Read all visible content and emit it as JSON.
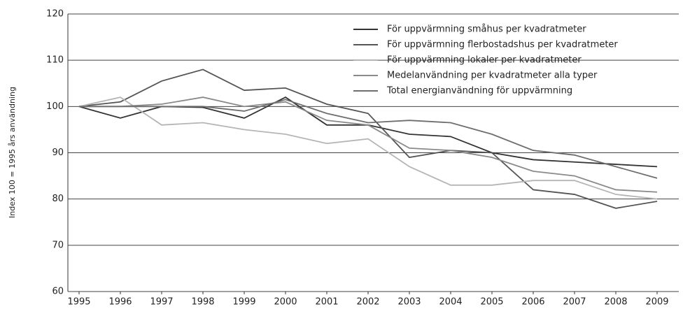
{
  "chart_data": {
    "type": "line",
    "y_label": "Index 100 = 1995 års användning",
    "categories": [
      "1995",
      "1996",
      "1997",
      "1998",
      "1999",
      "2000",
      "2001",
      "2002",
      "2003",
      "2004",
      "2005",
      "2006",
      "2007",
      "2008",
      "2009"
    ],
    "series": [
      {
        "name": "För uppvärmning småhus per kvadratmeter",
        "color": "#333333",
        "values": [
          100,
          97.5,
          100,
          99.8,
          97.5,
          102,
          96,
          96,
          94,
          93.5,
          90,
          88.5,
          88,
          87.5,
          87
        ]
      },
      {
        "name": "För uppvärmning flerbostadshus per kvadratmeter",
        "color": "#555555",
        "values": [
          100,
          101,
          105.5,
          108,
          103.5,
          104,
          100.5,
          98.5,
          89,
          90.5,
          90,
          82,
          81,
          78,
          79.5
        ]
      },
      {
        "name": "För uppvärmning lokaler per kvadratmeter",
        "color": "#b5b5b5",
        "values": [
          100,
          102,
          96,
          96.5,
          95,
          94,
          92,
          93,
          87,
          83,
          83,
          84,
          84,
          81,
          80
        ]
      },
      {
        "name": "Medelanvändning per kvadratmeter alla typer",
        "color": "#8a8a8a",
        "values": [
          100,
          100,
          100.5,
          102,
          100,
          101,
          97,
          96,
          91,
          90.5,
          89,
          86,
          85,
          82,
          81.5
        ]
      },
      {
        "name": "Total energianvändning för uppvärmning",
        "color": "#6e6e6e",
        "values": [
          100,
          100,
          100,
          100,
          99,
          101.5,
          98.5,
          96.5,
          97,
          96.5,
          94,
          90.5,
          89.5,
          87,
          84.5
        ]
      }
    ],
    "ylim": [
      60,
      120
    ],
    "yticks": [
      60,
      70,
      80,
      90,
      100,
      110,
      120
    ],
    "grid": true
  }
}
